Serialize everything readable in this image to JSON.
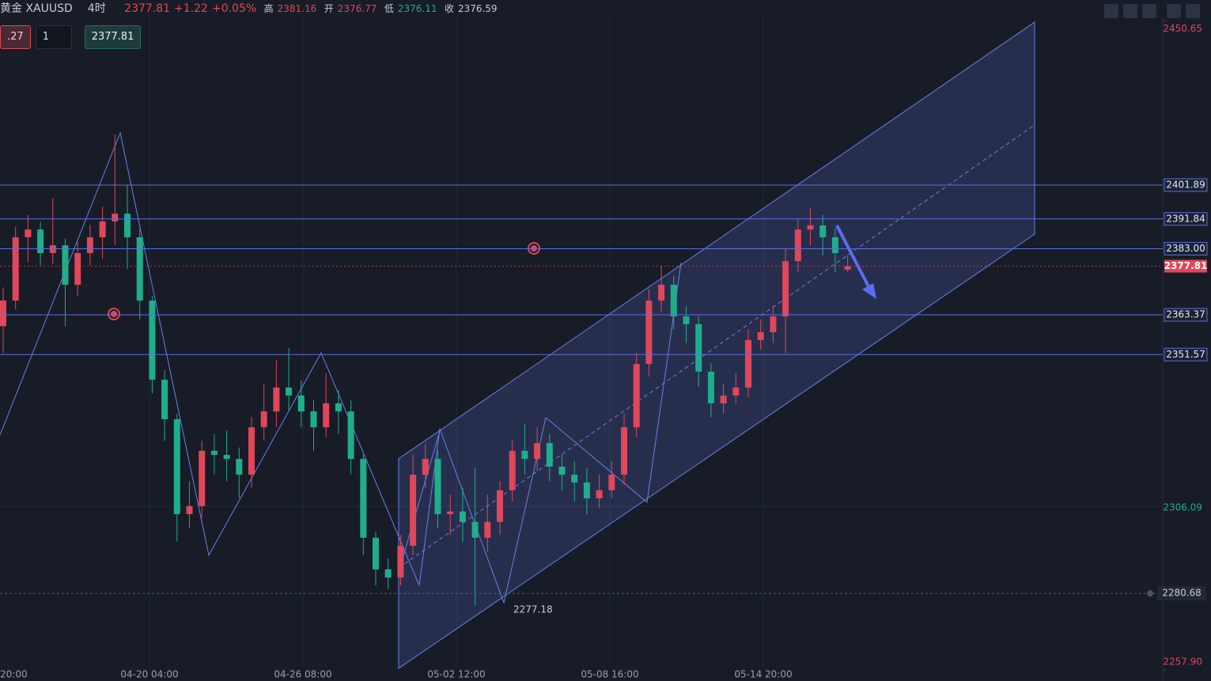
{
  "header": {
    "symbol": "黄金 XAUUSD",
    "interval": "4时",
    "price": "2377.81",
    "change": "+1.22",
    "change_pct": "+0.05%",
    "high_label": "高",
    "high": "2381.16",
    "open_label": "开",
    "open": "2376.77",
    "low_label": "低",
    "low": "2376.11",
    "close_label": "收",
    "close": "2376.59"
  },
  "order": {
    "left": ".27",
    "qty": "1",
    "price": "2377.81"
  },
  "chart_data": {
    "type": "candlestick",
    "up_color": "#e0475a",
    "down_color": "#1fae8c",
    "ylim": [
      2254.67,
      2456.83
    ],
    "yticks": [
      2450.65,
      2306.09,
      {
        "value": 2257.9,
        "label": "2257.90"
      }
    ],
    "levels": [
      2401.89,
      2391.84,
      {
        "value": 2383,
        "label": "2383.00"
      },
      2363.37,
      2351.57
    ],
    "last_price": 2377.81,
    "alert_price": 2280.68,
    "low_annotation": 2277.18,
    "time_labels": [
      "20:00",
      "04-20 04:00",
      "04-26 08:00",
      "05-02 12:00",
      "05-08 16:00",
      "05-14 20:00"
    ],
    "candles": [
      [
        2360.0,
        2371.5,
        2352.0,
        2367.6
      ],
      [
        2367.6,
        2389.5,
        2365.0,
        2386.4
      ],
      [
        2386.4,
        2393.0,
        2379.0,
        2388.7
      ],
      [
        2388.7,
        2391.0,
        2378.0,
        2381.7
      ],
      [
        2381.7,
        2398.0,
        2378.5,
        2384.0
      ],
      [
        2384.0,
        2386.0,
        2360.0,
        2372.3
      ],
      [
        2372.3,
        2385.0,
        2369.0,
        2381.7
      ],
      [
        2381.7,
        2390.0,
        2378.0,
        2386.4
      ],
      [
        2386.4,
        2395.5,
        2380.0,
        2391.1
      ],
      [
        2391.1,
        2416.9,
        2384.0,
        2393.4
      ],
      [
        2393.4,
        2402.0,
        2377.0,
        2386.4
      ],
      [
        2386.4,
        2389.0,
        2362.0,
        2367.6
      ],
      [
        2367.6,
        2369.0,
        2340.0,
        2344.1
      ],
      [
        2344.1,
        2347.0,
        2326.0,
        2332.4
      ],
      [
        2332.4,
        2334.0,
        2296.0,
        2304.2
      ],
      [
        2304.2,
        2314.0,
        2300.0,
        2306.6
      ],
      [
        2306.6,
        2326.0,
        2303.0,
        2323.0
      ],
      [
        2323.0,
        2328.0,
        2316.0,
        2321.8
      ],
      [
        2321.8,
        2329.0,
        2314.0,
        2320.6
      ],
      [
        2320.6,
        2324.0,
        2309.0,
        2315.9
      ],
      [
        2315.9,
        2333.0,
        2312.0,
        2330.0
      ],
      [
        2330.0,
        2343.0,
        2326.0,
        2334.7
      ],
      [
        2334.7,
        2350.0,
        2330.0,
        2341.8
      ],
      [
        2341.8,
        2353.5,
        2335.0,
        2339.4
      ],
      [
        2339.4,
        2344.0,
        2330.0,
        2334.7
      ],
      [
        2334.7,
        2338.0,
        2323.0,
        2330.0
      ],
      [
        2330.0,
        2346.0,
        2327.0,
        2337.1
      ],
      [
        2337.1,
        2341.0,
        2328.0,
        2334.7
      ],
      [
        2334.7,
        2338.0,
        2316.0,
        2320.6
      ],
      [
        2320.6,
        2322.0,
        2292.0,
        2297.2
      ],
      [
        2297.2,
        2299.0,
        2283.0,
        2287.8
      ],
      [
        2287.8,
        2291.0,
        2282.0,
        2285.4
      ],
      [
        2285.4,
        2298.0,
        2283.0,
        2294.8
      ],
      [
        2294.8,
        2322.0,
        2292.0,
        2315.9
      ],
      [
        2315.9,
        2325.0,
        2312.0,
        2320.6
      ],
      [
        2320.6,
        2323.0,
        2300.0,
        2304.2
      ],
      [
        2304.2,
        2310.0,
        2298.0,
        2305.0
      ],
      [
        2305.0,
        2312.0,
        2296.0,
        2301.9
      ],
      [
        2301.9,
        2318.0,
        2277.2,
        2297.2
      ],
      [
        2297.2,
        2310.0,
        2293.0,
        2301.9
      ],
      [
        2301.9,
        2314.0,
        2298.0,
        2311.3
      ],
      [
        2311.3,
        2326.0,
        2308.0,
        2323.0
      ],
      [
        2323.0,
        2331.0,
        2316.0,
        2320.6
      ],
      [
        2320.6,
        2330.0,
        2317.0,
        2325.3
      ],
      [
        2325.3,
        2328.0,
        2314.0,
        2318.3
      ],
      [
        2318.3,
        2322.0,
        2311.0,
        2315.9
      ],
      [
        2315.9,
        2320.0,
        2308.0,
        2313.6
      ],
      [
        2313.6,
        2318.0,
        2304.0,
        2308.9
      ],
      [
        2308.9,
        2316.0,
        2306.0,
        2311.3
      ],
      [
        2311.3,
        2320.0,
        2309.0,
        2315.9
      ],
      [
        2315.9,
        2334.0,
        2313.0,
        2330.0
      ],
      [
        2330.0,
        2352.0,
        2327.0,
        2348.8
      ],
      [
        2348.8,
        2371.0,
        2345.0,
        2367.6
      ],
      [
        2367.6,
        2378.0,
        2364.0,
        2372.3
      ],
      [
        2372.3,
        2375.0,
        2359.0,
        2362.9
      ],
      [
        2362.9,
        2366.0,
        2355.0,
        2360.6
      ],
      [
        2360.6,
        2363.0,
        2342.0,
        2346.5
      ],
      [
        2346.5,
        2349.0,
        2333.0,
        2337.1
      ],
      [
        2337.1,
        2343.0,
        2334.0,
        2339.4
      ],
      [
        2339.4,
        2346.0,
        2337.0,
        2341.8
      ],
      [
        2341.8,
        2359.0,
        2339.0,
        2355.9
      ],
      [
        2355.9,
        2362.0,
        2353.0,
        2358.2
      ],
      [
        2358.2,
        2366.0,
        2355.0,
        2362.9
      ],
      [
        2362.9,
        2383.0,
        2352.0,
        2379.3
      ],
      [
        2379.3,
        2392.0,
        2376.0,
        2388.7
      ],
      [
        2388.7,
        2395.0,
        2384.0,
        2389.9
      ],
      [
        2389.9,
        2393.0,
        2381.0,
        2386.4
      ],
      [
        2386.4,
        2389.0,
        2376.0,
        2381.7
      ],
      [
        2376.77,
        2381.16,
        2376.11,
        2377.81
      ]
    ]
  }
}
